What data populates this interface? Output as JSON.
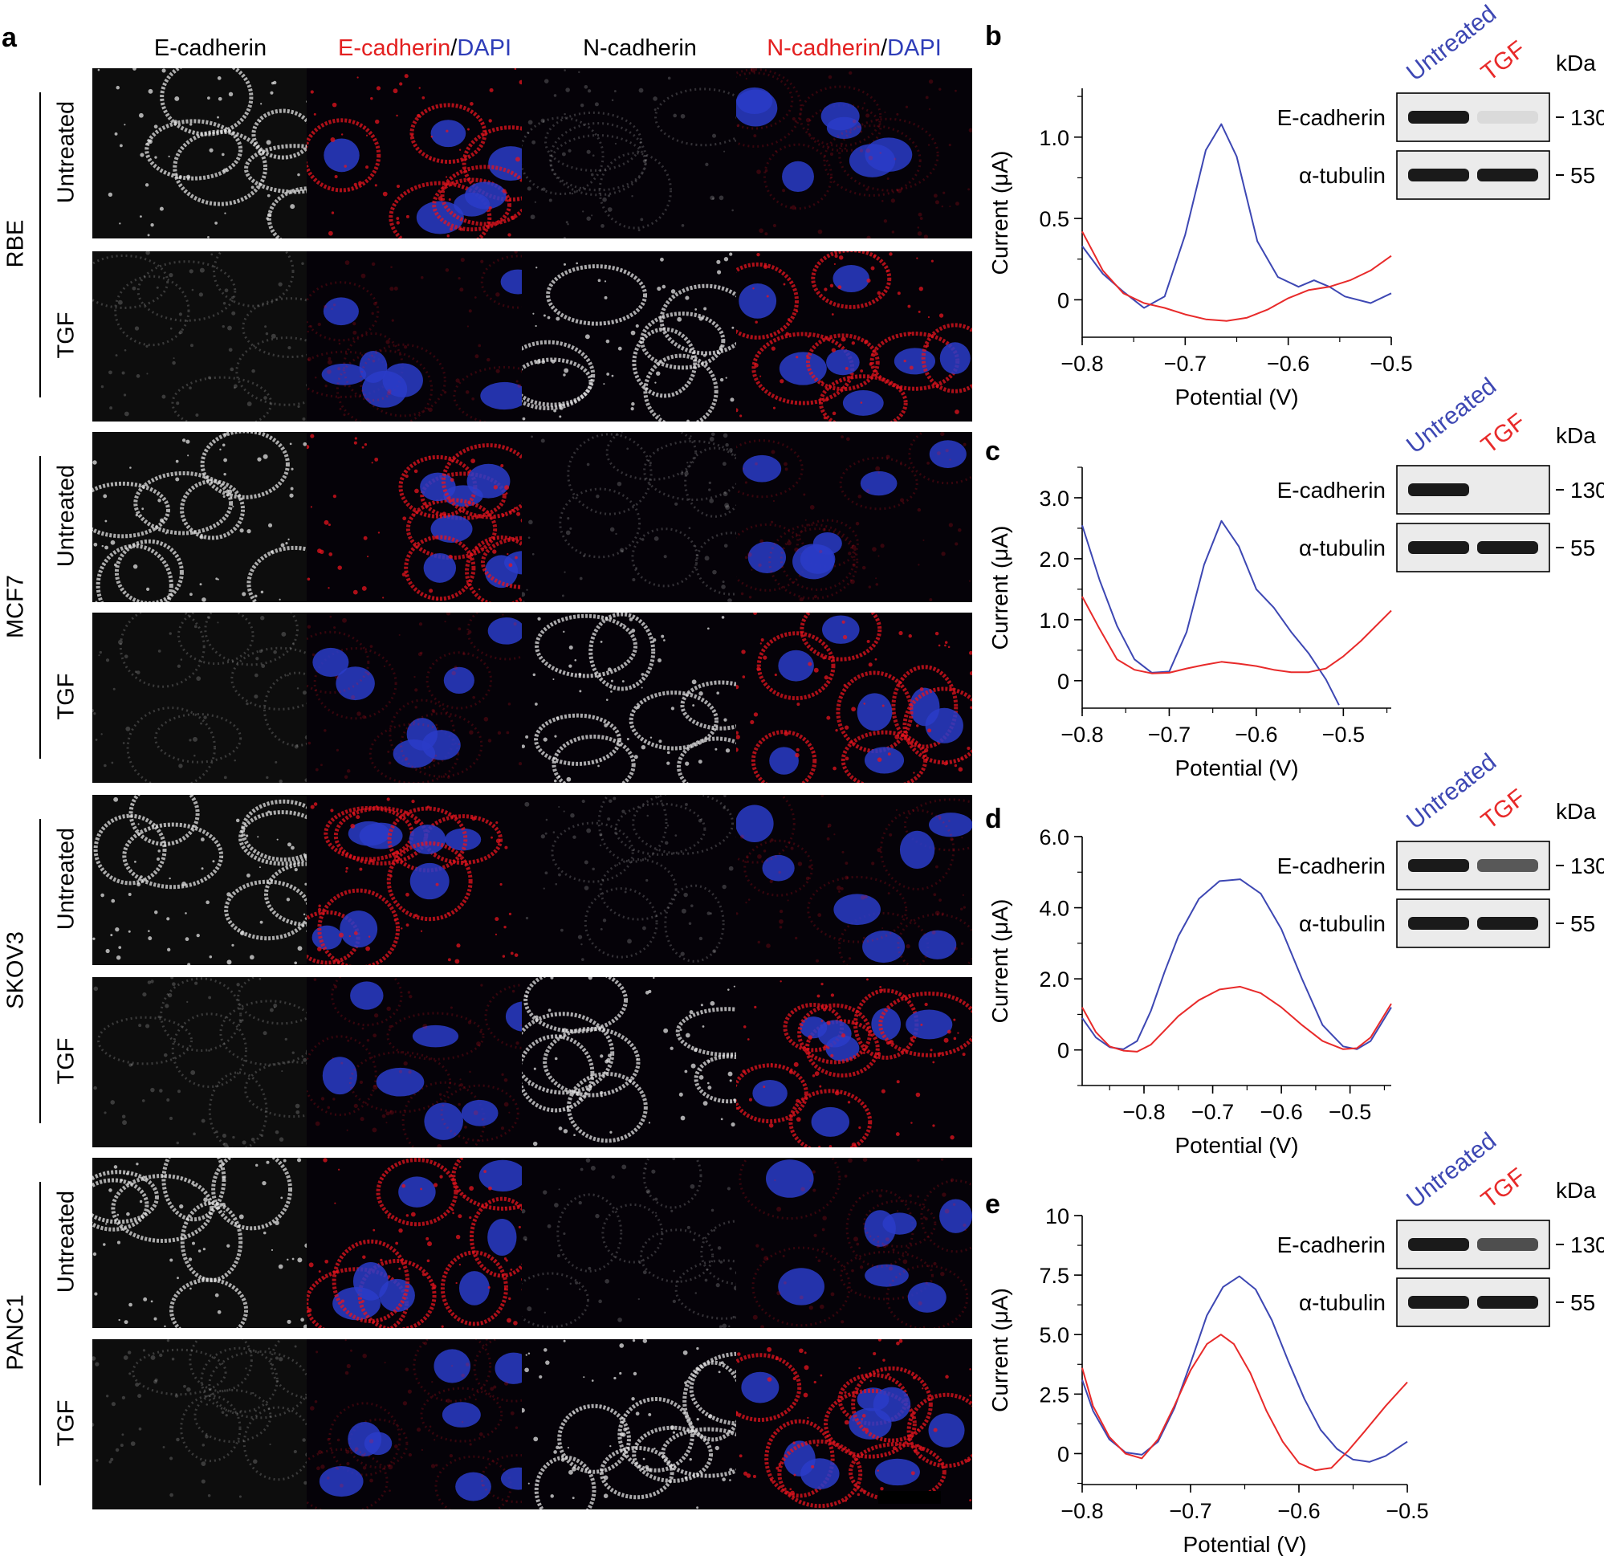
{
  "panel_a": {
    "letter": "a",
    "columns": [
      {
        "parts": [
          {
            "text": "E-cadherin",
            "color": "black"
          }
        ]
      },
      {
        "parts": [
          {
            "text": "E-cadherin",
            "color": "red"
          },
          {
            "text": "/",
            "color": "black"
          },
          {
            "text": "DAPI",
            "color": "blue"
          }
        ]
      },
      {
        "parts": [
          {
            "text": "N-cadherin",
            "color": "black"
          }
        ]
      },
      {
        "parts": [
          {
            "text": "N-cadherin",
            "color": "red"
          },
          {
            "text": "/",
            "color": "black"
          },
          {
            "text": "DAPI",
            "color": "blue"
          }
        ]
      }
    ],
    "cell_lines": [
      {
        "name": "RBE",
        "conditions": [
          "Untreated",
          "TGF"
        ]
      },
      {
        "name": "MCF7",
        "conditions": [
          "Untreated",
          "TGF"
        ]
      },
      {
        "name": "SKOV3",
        "conditions": [
          "Untreated",
          "TGF"
        ]
      },
      {
        "name": "PANC1",
        "conditions": [
          "Untreated",
          "TGF"
        ]
      }
    ]
  },
  "colors": {
    "untreated": "#3d47b3",
    "tgf": "#e82a2a",
    "blue_text": "#2e3db8",
    "red_text": "#e32020"
  },
  "blot_labels": {
    "untreated": "Untreated",
    "tgf": "TGF",
    "kda": "kDa",
    "row1": "E-cadherin",
    "row2": "α-tubulin",
    "mw1": "130",
    "mw2": "55"
  },
  "chart_data": [
    {
      "panel": "b",
      "type": "line",
      "xlabel": "Potential (V)",
      "ylabel": "Current (μA)",
      "xlim": [
        -0.8,
        -0.5
      ],
      "ylim": [
        -0.23,
        1.3
      ],
      "xticks": [
        -0.8,
        -0.7,
        -0.6,
        -0.5
      ],
      "xtick_labels": [
        "−0.8",
        "−0.7",
        "−0.6",
        "−0.5"
      ],
      "yticks": [
        0,
        0.5,
        1.0
      ],
      "ytick_labels": [
        "0",
        "0.5",
        "1.0"
      ],
      "series": [
        {
          "key": "untreated",
          "points": [
            [
              -0.8,
              0.33
            ],
            [
              -0.78,
              0.16
            ],
            [
              -0.76,
              0.05
            ],
            [
              -0.74,
              -0.05
            ],
            [
              -0.72,
              0.02
            ],
            [
              -0.7,
              0.4
            ],
            [
              -0.68,
              0.92
            ],
            [
              -0.665,
              1.08
            ],
            [
              -0.65,
              0.88
            ],
            [
              -0.63,
              0.36
            ],
            [
              -0.61,
              0.14
            ],
            [
              -0.59,
              0.08
            ],
            [
              -0.575,
              0.12
            ],
            [
              -0.56,
              0.08
            ],
            [
              -0.545,
              0.02
            ],
            [
              -0.52,
              -0.02
            ],
            [
              -0.5,
              0.04
            ]
          ]
        },
        {
          "key": "tgf",
          "points": [
            [
              -0.8,
              0.42
            ],
            [
              -0.78,
              0.18
            ],
            [
              -0.76,
              0.04
            ],
            [
              -0.74,
              -0.02
            ],
            [
              -0.72,
              -0.05
            ],
            [
              -0.7,
              -0.09
            ],
            [
              -0.68,
              -0.12
            ],
            [
              -0.66,
              -0.13
            ],
            [
              -0.64,
              -0.11
            ],
            [
              -0.62,
              -0.06
            ],
            [
              -0.6,
              0.01
            ],
            [
              -0.58,
              0.06
            ],
            [
              -0.56,
              0.08
            ],
            [
              -0.54,
              0.12
            ],
            [
              -0.52,
              0.18
            ],
            [
              -0.5,
              0.27
            ]
          ]
        }
      ],
      "blot": {
        "tgf_ecad": 0.08
      }
    },
    {
      "panel": "c",
      "type": "line",
      "xlabel": "Potential (V)",
      "ylabel": "Current (μA)",
      "xlim": [
        -0.8,
        -0.445
      ],
      "ylim": [
        -0.45,
        3.5
      ],
      "xticks": [
        -0.8,
        -0.7,
        -0.6,
        -0.5
      ],
      "xtick_labels": [
        "−0.8",
        "−0.7",
        "−0.6",
        "−0.5"
      ],
      "yticks": [
        0,
        1.0,
        2.0,
        3.0
      ],
      "ytick_labels": [
        "0",
        "1.0",
        "2.0",
        "3.0"
      ],
      "series": [
        {
          "key": "untreated",
          "points": [
            [
              -0.8,
              2.55
            ],
            [
              -0.78,
              1.65
            ],
            [
              -0.76,
              0.9
            ],
            [
              -0.74,
              0.35
            ],
            [
              -0.72,
              0.13
            ],
            [
              -0.7,
              0.15
            ],
            [
              -0.68,
              0.8
            ],
            [
              -0.66,
              1.9
            ],
            [
              -0.64,
              2.62
            ],
            [
              -0.62,
              2.2
            ],
            [
              -0.6,
              1.5
            ],
            [
              -0.58,
              1.2
            ],
            [
              -0.56,
              0.8
            ],
            [
              -0.54,
              0.45
            ],
            [
              -0.52,
              0.02
            ],
            [
              -0.505,
              -0.4
            ]
          ]
        },
        {
          "key": "tgf",
          "points": [
            [
              -0.8,
              1.38
            ],
            [
              -0.78,
              0.85
            ],
            [
              -0.76,
              0.35
            ],
            [
              -0.74,
              0.18
            ],
            [
              -0.72,
              0.12
            ],
            [
              -0.7,
              0.13
            ],
            [
              -0.68,
              0.2
            ],
            [
              -0.66,
              0.26
            ],
            [
              -0.64,
              0.31
            ],
            [
              -0.62,
              0.28
            ],
            [
              -0.6,
              0.24
            ],
            [
              -0.58,
              0.18
            ],
            [
              -0.56,
              0.14
            ],
            [
              -0.54,
              0.14
            ],
            [
              -0.52,
              0.2
            ],
            [
              -0.5,
              0.4
            ],
            [
              -0.48,
              0.65
            ],
            [
              -0.445,
              1.15
            ]
          ]
        }
      ],
      "blot": {
        "tgf_ecad": 0.0
      }
    },
    {
      "panel": "d",
      "type": "line",
      "xlabel": "Potential (V)",
      "ylabel": "Current (μA)",
      "xlim": [
        -0.89,
        -0.44
      ],
      "ylim": [
        -1.0,
        6.0
      ],
      "xticks": [
        -0.8,
        -0.7,
        -0.6,
        -0.5
      ],
      "xtick_labels": [
        "−0.8",
        "−0.7",
        "−0.6",
        "−0.5"
      ],
      "yticks": [
        0,
        2.0,
        4.0,
        6.0
      ],
      "ytick_labels": [
        "0",
        "2.0",
        "4.0",
        "6.0"
      ],
      "series": [
        {
          "key": "untreated",
          "points": [
            [
              -0.89,
              0.9
            ],
            [
              -0.87,
              0.35
            ],
            [
              -0.85,
              0.08
            ],
            [
              -0.83,
              0.02
            ],
            [
              -0.81,
              0.25
            ],
            [
              -0.79,
              1.1
            ],
            [
              -0.77,
              2.2
            ],
            [
              -0.75,
              3.2
            ],
            [
              -0.72,
              4.25
            ],
            [
              -0.69,
              4.75
            ],
            [
              -0.66,
              4.8
            ],
            [
              -0.63,
              4.4
            ],
            [
              -0.6,
              3.4
            ],
            [
              -0.57,
              2.0
            ],
            [
              -0.54,
              0.7
            ],
            [
              -0.51,
              0.1
            ],
            [
              -0.49,
              0.02
            ],
            [
              -0.47,
              0.25
            ],
            [
              -0.44,
              1.2
            ]
          ]
        },
        {
          "key": "tgf",
          "points": [
            [
              -0.89,
              1.2
            ],
            [
              -0.87,
              0.5
            ],
            [
              -0.85,
              0.1
            ],
            [
              -0.83,
              -0.02
            ],
            [
              -0.81,
              -0.05
            ],
            [
              -0.79,
              0.15
            ],
            [
              -0.77,
              0.55
            ],
            [
              -0.75,
              0.95
            ],
            [
              -0.72,
              1.4
            ],
            [
              -0.69,
              1.7
            ],
            [
              -0.66,
              1.78
            ],
            [
              -0.63,
              1.6
            ],
            [
              -0.6,
              1.2
            ],
            [
              -0.57,
              0.7
            ],
            [
              -0.54,
              0.25
            ],
            [
              -0.51,
              0.02
            ],
            [
              -0.49,
              0.05
            ],
            [
              -0.47,
              0.35
            ],
            [
              -0.44,
              1.3
            ]
          ]
        }
      ],
      "blot": {
        "tgf_ecad": 0.7
      }
    },
    {
      "panel": "e",
      "type": "line",
      "xlabel": "Potential (V)",
      "ylabel": "Current (μA)",
      "xlim": [
        -0.8,
        -0.5
      ],
      "ylim": [
        -1.3,
        10
      ],
      "xticks": [
        -0.8,
        -0.7,
        -0.6,
        -0.5
      ],
      "xtick_labels": [
        "−0.8",
        "−0.7",
        "−0.6",
        "−0.5"
      ],
      "yticks": [
        0,
        2.5,
        5.0,
        7.5,
        10
      ],
      "ytick_labels": [
        "0",
        "2.5",
        "5.0",
        "7.5",
        "10"
      ],
      "series": [
        {
          "key": "untreated",
          "points": [
            [
              -0.8,
              3.1
            ],
            [
              -0.79,
              1.8
            ],
            [
              -0.775,
              0.6
            ],
            [
              -0.76,
              0.05
            ],
            [
              -0.745,
              -0.05
            ],
            [
              -0.73,
              0.5
            ],
            [
              -0.715,
              1.9
            ],
            [
              -0.7,
              3.8
            ],
            [
              -0.685,
              5.8
            ],
            [
              -0.67,
              7.0
            ],
            [
              -0.655,
              7.45
            ],
            [
              -0.64,
              6.9
            ],
            [
              -0.625,
              5.6
            ],
            [
              -0.61,
              3.9
            ],
            [
              -0.595,
              2.3
            ],
            [
              -0.58,
              1.0
            ],
            [
              -0.565,
              0.2
            ],
            [
              -0.55,
              -0.25
            ],
            [
              -0.535,
              -0.35
            ],
            [
              -0.52,
              -0.1
            ],
            [
              -0.5,
              0.5
            ]
          ]
        },
        {
          "key": "tgf",
          "points": [
            [
              -0.8,
              3.6
            ],
            [
              -0.79,
              2.0
            ],
            [
              -0.775,
              0.7
            ],
            [
              -0.76,
              0.0
            ],
            [
              -0.745,
              -0.2
            ],
            [
              -0.73,
              0.6
            ],
            [
              -0.715,
              2.0
            ],
            [
              -0.7,
              3.5
            ],
            [
              -0.685,
              4.6
            ],
            [
              -0.672,
              5.0
            ],
            [
              -0.66,
              4.6
            ],
            [
              -0.645,
              3.4
            ],
            [
              -0.63,
              1.8
            ],
            [
              -0.615,
              0.5
            ],
            [
              -0.6,
              -0.4
            ],
            [
              -0.585,
              -0.7
            ],
            [
              -0.57,
              -0.6
            ],
            [
              -0.555,
              0.1
            ],
            [
              -0.54,
              0.9
            ],
            [
              -0.52,
              2.0
            ],
            [
              -0.5,
              3.0
            ]
          ]
        }
      ],
      "blot": {
        "tgf_ecad": 0.75
      }
    }
  ]
}
